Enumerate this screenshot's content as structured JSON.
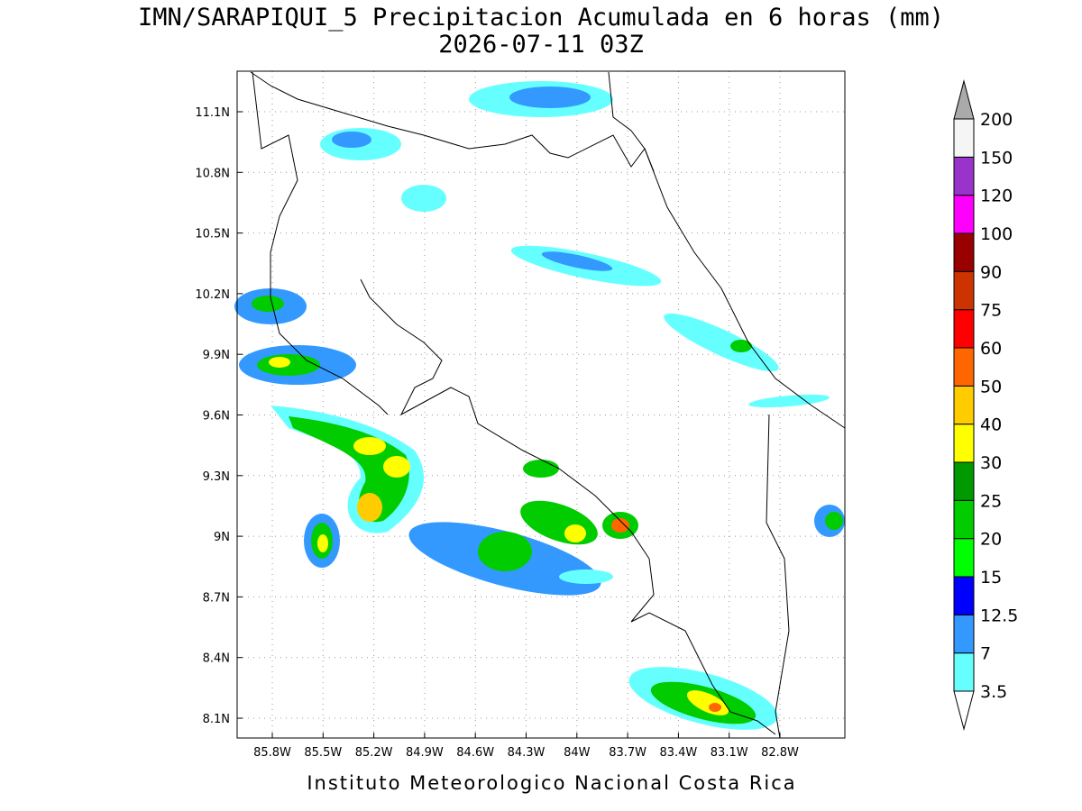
{
  "header": {
    "title": "IMN/SARAPIQUI_5 Precipitacion Acumulada en 6 horas (mm)",
    "subtitle": "2026-07-11 03Z"
  },
  "map": {
    "lat_ticks": [
      "11.1N",
      "10.8N",
      "10.5N",
      "10.2N",
      "9.9N",
      "9.6N",
      "9.3N",
      "9N",
      "8.7N",
      "8.4N",
      "8.1N"
    ],
    "lon_ticks": [
      "85.8W",
      "85.5W",
      "85.2W",
      "84.9W",
      "84.6W",
      "84.3W",
      "84W",
      "83.7W",
      "83.4W",
      "83.1W",
      "82.8W"
    ]
  },
  "colorbar": {
    "levels": [
      3.5,
      7,
      12.5,
      15,
      20,
      25,
      30,
      40,
      50,
      60,
      75,
      90,
      100,
      120,
      150,
      200
    ],
    "colors": [
      "#66ffff",
      "#3399ff",
      "#0000ff",
      "#00ff00",
      "#00cc00",
      "#009900",
      "#ffff00",
      "#ffcc00",
      "#ff6600",
      "#ff0000",
      "#cc3300",
      "#990000",
      "#ff00ff",
      "#9933cc",
      "#f5f5f5"
    ],
    "under_color": "#ffffff",
    "over_color": "#aaaaaa"
  },
  "footer": "Instituto Meteorologico Nacional Costa Rica"
}
